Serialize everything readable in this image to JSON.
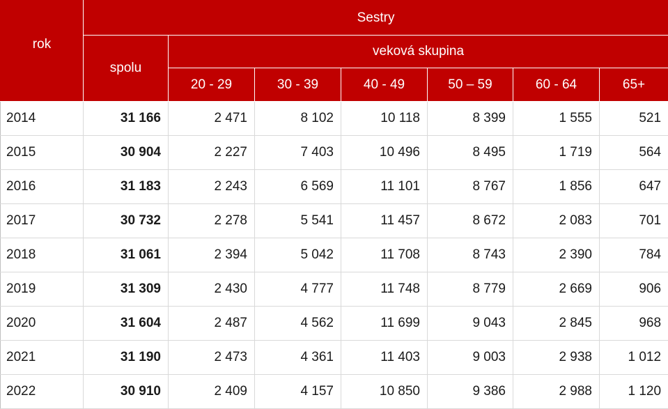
{
  "header": {
    "rok_label": "rok",
    "sestry_label": "Sestry",
    "spolu_label": "spolu",
    "vekova_label": "veková skupina",
    "age_groups": [
      "20 - 29",
      "30 - 39",
      "40 - 49",
      "50 – 59",
      "60 - 64",
      "65+"
    ]
  },
  "rows": [
    {
      "year": "2014",
      "total": "31 166",
      "values": [
        "2 471",
        "8 102",
        "10 118",
        "8 399",
        "1 555",
        "521"
      ]
    },
    {
      "year": "2015",
      "total": "30 904",
      "values": [
        "2 227",
        "7 403",
        "10 496",
        "8 495",
        "1 719",
        "564"
      ]
    },
    {
      "year": "2016",
      "total": "31 183",
      "values": [
        "2 243",
        "6 569",
        "11 101",
        "8 767",
        "1 856",
        "647"
      ]
    },
    {
      "year": "2017",
      "total": "30 732",
      "values": [
        "2 278",
        "5 541",
        "11 457",
        "8 672",
        "2 083",
        "701"
      ]
    },
    {
      "year": "2018",
      "total": "31 061",
      "values": [
        "2 394",
        "5 042",
        "11 708",
        "8 743",
        "2 390",
        "784"
      ]
    },
    {
      "year": "2019",
      "total": "31 309",
      "values": [
        "2 430",
        "4 777",
        "11 748",
        "8 779",
        "2 669",
        "906"
      ]
    },
    {
      "year": "2020",
      "total": "31 604",
      "values": [
        "2 487",
        "4 562",
        "11 699",
        "9 043",
        "2 845",
        "968"
      ]
    },
    {
      "year": "2021",
      "total": "31 190",
      "values": [
        "2 473",
        "4 361",
        "11 403",
        "9 003",
        "2 938",
        "1 012"
      ]
    },
    {
      "year": "2022",
      "total": "30 910",
      "values": [
        "2 409",
        "4 157",
        "10 850",
        "9 386",
        "2 988",
        "1 120"
      ]
    }
  ]
}
